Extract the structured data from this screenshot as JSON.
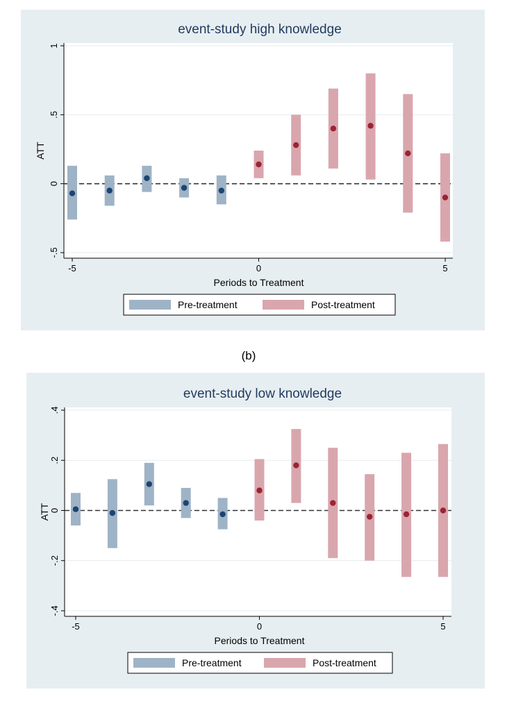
{
  "panel_label": "(b)",
  "legend": {
    "pre": "Pre-treatment",
    "post": "Post-treatment"
  },
  "colors": {
    "panel_bg": "#e7eef1",
    "plot_bg": "#ffffff",
    "pre_bar": "#9fb3c6",
    "pre_dot": "#1d4470",
    "post_bar": "#d9a6ad",
    "post_dot": "#9b2434",
    "title": "#1f3a5f"
  },
  "chart_data": [
    {
      "type": "scatter",
      "title": "event-study high knowledge",
      "xlabel": "Periods to Treatment",
      "ylabel": "ATT",
      "xlim": [
        -5,
        5
      ],
      "ylim": [
        -0.5,
        1
      ],
      "x_ticks": [
        "-5",
        "0",
        "5"
      ],
      "y_ticks": [
        "-.5",
        "0",
        ".5",
        "1"
      ],
      "legend_position": "bottom",
      "series": [
        {
          "name": "Pre-treatment",
          "points": [
            {
              "x": -5,
              "y": -0.07,
              "lo": -0.26,
              "hi": 0.13
            },
            {
              "x": -4,
              "y": -0.05,
              "lo": -0.16,
              "hi": 0.06
            },
            {
              "x": -3,
              "y": 0.04,
              "lo": -0.06,
              "hi": 0.13
            },
            {
              "x": -2,
              "y": -0.03,
              "lo": -0.1,
              "hi": 0.04
            },
            {
              "x": -1,
              "y": -0.05,
              "lo": -0.15,
              "hi": 0.06
            }
          ]
        },
        {
          "name": "Post-treatment",
          "points": [
            {
              "x": 0,
              "y": 0.14,
              "lo": 0.04,
              "hi": 0.24
            },
            {
              "x": 1,
              "y": 0.28,
              "lo": 0.06,
              "hi": 0.5
            },
            {
              "x": 2,
              "y": 0.4,
              "lo": 0.11,
              "hi": 0.69
            },
            {
              "x": 3,
              "y": 0.42,
              "lo": 0.03,
              "hi": 0.8
            },
            {
              "x": 4,
              "y": 0.22,
              "lo": -0.21,
              "hi": 0.65
            },
            {
              "x": 5,
              "y": -0.1,
              "lo": -0.42,
              "hi": 0.22
            }
          ]
        }
      ]
    },
    {
      "type": "scatter",
      "title": "event-study low knowledge",
      "xlabel": "Periods to Treatment",
      "ylabel": "ATT",
      "xlim": [
        -5,
        5
      ],
      "ylim": [
        -0.4,
        0.4
      ],
      "x_ticks": [
        "-5",
        "0",
        "5"
      ],
      "y_ticks": [
        "-.4",
        "-.2",
        "0",
        ".2",
        ".4"
      ],
      "legend_position": "bottom",
      "series": [
        {
          "name": "Pre-treatment",
          "points": [
            {
              "x": -5,
              "y": 0.005,
              "lo": -0.06,
              "hi": 0.07
            },
            {
              "x": -4,
              "y": -0.01,
              "lo": -0.15,
              "hi": 0.125
            },
            {
              "x": -3,
              "y": 0.105,
              "lo": 0.02,
              "hi": 0.19
            },
            {
              "x": -2,
              "y": 0.03,
              "lo": -0.03,
              "hi": 0.09
            },
            {
              "x": -1,
              "y": -0.015,
              "lo": -0.075,
              "hi": 0.05
            }
          ]
        },
        {
          "name": "Post-treatment",
          "points": [
            {
              "x": 0,
              "y": 0.08,
              "lo": -0.04,
              "hi": 0.205
            },
            {
              "x": 1,
              "y": 0.18,
              "lo": 0.03,
              "hi": 0.325
            },
            {
              "x": 2,
              "y": 0.03,
              "lo": -0.19,
              "hi": 0.25
            },
            {
              "x": 3,
              "y": -0.025,
              "lo": -0.2,
              "hi": 0.145
            },
            {
              "x": 4,
              "y": -0.015,
              "lo": -0.265,
              "hi": 0.23
            },
            {
              "x": 5,
              "y": 0.0,
              "lo": -0.265,
              "hi": 0.265
            }
          ]
        }
      ]
    }
  ]
}
